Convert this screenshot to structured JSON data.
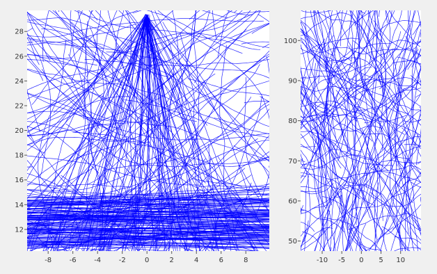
{
  "figure": {
    "background": "#f0f0f0",
    "plot_background": "#ffffff",
    "line_color": "#0000ff"
  },
  "chart_data": [
    {
      "type": "line",
      "title": "",
      "xlabel": "",
      "ylabel": "",
      "xlim": [
        -9.7,
        9.9
      ],
      "ylim": [
        10.25,
        29.7
      ],
      "xticks": [
        -8,
        -6,
        -4,
        -2,
        0,
        2,
        4,
        6,
        8
      ],
      "xtick_labels": [
        "-8",
        "-6",
        "-4",
        "-2",
        "0",
        "2",
        "4",
        "6",
        "8"
      ],
      "yticks": [
        12,
        14,
        16,
        18,
        20,
        22,
        24,
        26,
        28
      ],
      "ytick_labels": [
        "12",
        "14",
        "16",
        "18",
        "20",
        "22",
        "24",
        "26",
        "28"
      ],
      "grid": false,
      "legend": "none",
      "series_color": "#0000ff",
      "series_count": 420,
      "focus_point": [
        0,
        29.4
      ],
      "dense_band": [
        10.5,
        14.5
      ],
      "range_note": "Hundreds of random wandering trajectories; many converge near (0, 29.4) and a dense band of near-horizontal paths lies between y = 10.5 and 14.5."
    },
    {
      "type": "line",
      "title": "",
      "xlabel": "",
      "ylabel": "",
      "xlim": [
        -15.5,
        15.2
      ],
      "ylim": [
        47.5,
        107.5
      ],
      "xticks": [
        -10,
        -5,
        0,
        5,
        10
      ],
      "xtick_labels": [
        "-10",
        "-5",
        "0",
        "5",
        "10"
      ],
      "yticks": [
        50,
        60,
        70,
        80,
        90,
        100
      ],
      "ytick_labels": [
        "50",
        "60",
        "70",
        "80",
        "90",
        "100"
      ],
      "grid": false,
      "legend": "none",
      "series_color": "#0000ff",
      "series_count": 240,
      "range_note": "Uniformly distributed random curved trajectories filling the whole panel."
    }
  ]
}
